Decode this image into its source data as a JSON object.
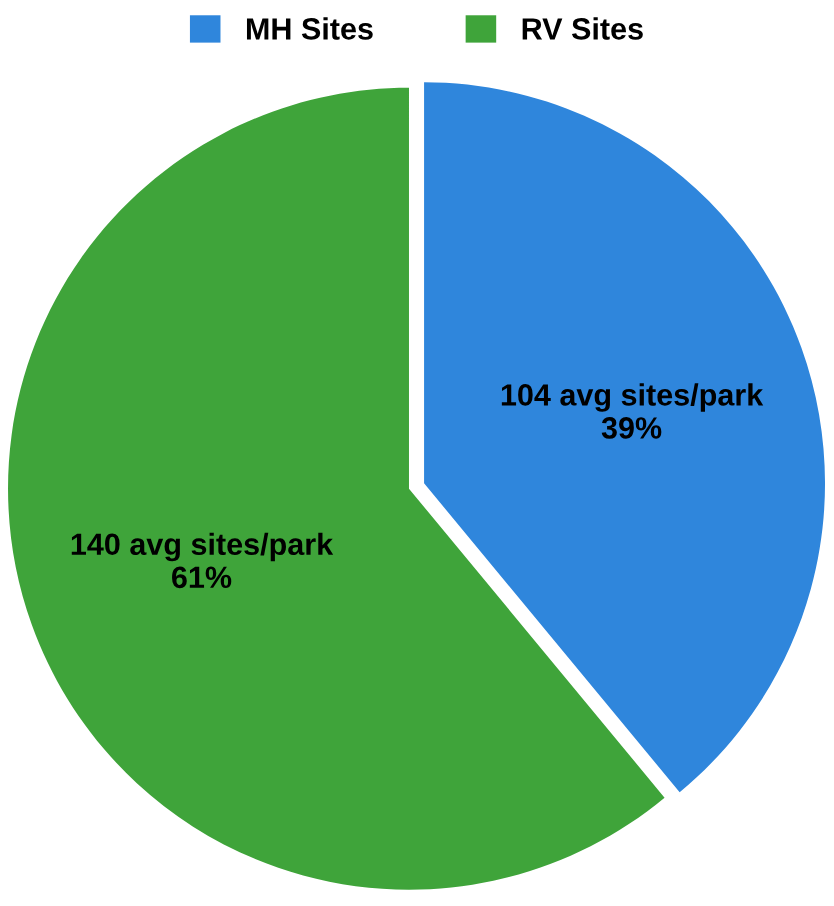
{
  "chart_data": {
    "type": "pie",
    "categories": [
      "MH Sites",
      "RV Sites"
    ],
    "values": [
      39,
      61
    ],
    "colors": [
      "#2f86dc",
      "#3fa43a"
    ],
    "value_labels": [
      "104 avg sites/park\n39%",
      "140 avg sites/park\n61%"
    ],
    "legend": "top"
  }
}
